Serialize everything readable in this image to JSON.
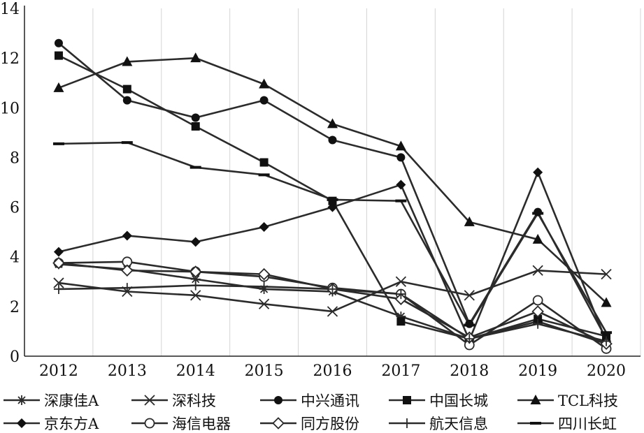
{
  "chart_data": {
    "type": "line",
    "title": "",
    "xlabel": "",
    "ylabel": "",
    "x": [
      "2012",
      "2013",
      "2014",
      "2015",
      "2016",
      "2017",
      "2018",
      "2019",
      "2020"
    ],
    "ylim": [
      0,
      14
    ],
    "yticks": [
      "0",
      "2",
      "4",
      "6",
      "8",
      "10",
      "12",
      "14"
    ],
    "grid": "vertical",
    "legend_position": "bottom",
    "series": [
      {
        "name": "深康佳A",
        "marker": "asterisk",
        "values": [
          3.7,
          3.5,
          3.1,
          2.7,
          2.6,
          1.6,
          0.7,
          1.4,
          0.5
        ]
      },
      {
        "name": "深科技",
        "marker": "x",
        "values": [
          2.95,
          2.6,
          2.45,
          2.1,
          1.8,
          3.0,
          2.45,
          3.45,
          3.3
        ]
      },
      {
        "name": "中兴通讯",
        "marker": "circle",
        "values": [
          12.6,
          10.3,
          9.6,
          10.3,
          8.7,
          8.0,
          1.3,
          5.8,
          0.7
        ]
      },
      {
        "name": "中国长城",
        "marker": "square",
        "values": [
          12.1,
          10.75,
          9.25,
          7.8,
          6.25,
          1.4,
          0.7,
          1.5,
          0.8
        ]
      },
      {
        "name": "TCL科技",
        "marker": "triangle",
        "values": [
          10.8,
          11.85,
          12.0,
          10.95,
          9.35,
          8.45,
          5.4,
          4.7,
          2.15
        ]
      },
      {
        "name": "京东方A",
        "marker": "diamond",
        "values": [
          4.2,
          4.85,
          4.6,
          5.2,
          6.0,
          6.9,
          0.65,
          7.4,
          0.6
        ]
      },
      {
        "name": "海信电器",
        "marker": "open-circle",
        "values": [
          3.75,
          3.8,
          3.4,
          3.2,
          2.75,
          2.5,
          0.45,
          2.25,
          0.3
        ]
      },
      {
        "name": "同方股份",
        "marker": "open-diamond",
        "values": [
          3.75,
          3.45,
          3.4,
          3.3,
          2.7,
          2.3,
          0.75,
          1.8,
          0.5
        ]
      },
      {
        "name": "航天信息",
        "marker": "plus",
        "values": [
          2.7,
          2.75,
          2.85,
          2.8,
          2.7,
          2.5,
          0.7,
          1.3,
          0.6
        ]
      },
      {
        "name": "四川长虹",
        "marker": "dash",
        "values": [
          8.55,
          8.6,
          7.6,
          7.3,
          6.3,
          6.25,
          1.25,
          5.75,
          0.95
        ]
      }
    ]
  }
}
